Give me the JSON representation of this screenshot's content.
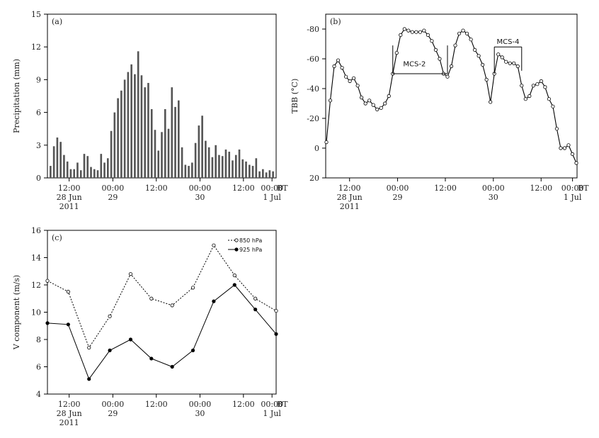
{
  "chart_data": [
    {
      "panel": "(a)",
      "type": "bar",
      "ylabel": "Precipitation (mm)",
      "ylim": [
        0,
        15
      ],
      "yticks": [
        "0",
        "3",
        "6",
        "9",
        "12",
        "15"
      ],
      "xticks": [
        {
          "lines": [
            "12:00",
            "28 Jun",
            "2011"
          ]
        },
        {
          "lines": [
            "00:00",
            "29"
          ]
        },
        {
          "lines": [
            "12:00"
          ]
        },
        {
          "lines": [
            "00:00",
            "30"
          ]
        },
        {
          "lines": [
            "12:00"
          ]
        },
        {
          "lines": [
            "00:00",
            "1 Jul"
          ]
        }
      ],
      "x_unit": "BT",
      "values": [
        1.1,
        2.9,
        3.7,
        3.3,
        2.1,
        1.5,
        0.8,
        0.8,
        1.4,
        0.7,
        2.2,
        2.0,
        1.0,
        0.8,
        0.7,
        2.2,
        1.4,
        1.8,
        4.3,
        6.0,
        7.3,
        8.0,
        9.0,
        9.7,
        10.4,
        9.5,
        11.6,
        9.4,
        8.3,
        8.7,
        6.3,
        4.4,
        2.5,
        4.2,
        6.3,
        4.5,
        8.3,
        6.5,
        7.1,
        2.8,
        1.2,
        1.1,
        1.4,
        3.2,
        4.8,
        5.7,
        3.4,
        2.8,
        1.9,
        3.0,
        2.1,
        2.0,
        2.6,
        2.4,
        1.6,
        2.1,
        2.6,
        1.7,
        1.5,
        1.2,
        1.1,
        1.8,
        0.6,
        0.8,
        0.5,
        0.7,
        0.6
      ]
    },
    {
      "panel": "(b)",
      "type": "line",
      "ylabel": "TBB (°C)",
      "ylim": [
        20,
        -90
      ],
      "yticks": [
        "20",
        "0",
        "-20",
        "-40",
        "-60",
        "-80"
      ],
      "xticks": [
        {
          "lines": [
            "12:00",
            "28 Jun",
            "2011"
          ]
        },
        {
          "lines": [
            "00:00",
            "29"
          ]
        },
        {
          "lines": [
            "12:00"
          ]
        },
        {
          "lines": [
            "00:00",
            "30"
          ]
        },
        {
          "lines": [
            "12:00"
          ]
        },
        {
          "lines": [
            "00:00",
            "1 Jul"
          ]
        }
      ],
      "x_unit": "BT",
      "annotations": [
        "MCS-2",
        "MCS-4"
      ],
      "values": [
        -4,
        -32,
        -55,
        -59,
        -54,
        -48,
        -45,
        -47,
        -42,
        -34,
        -30,
        -32,
        -29,
        -26,
        -27,
        -30,
        -35,
        -50,
        -64,
        -76,
        -80,
        -79,
        -78,
        -78,
        -78,
        -79,
        -76,
        -72,
        -66,
        -60,
        -50,
        -48,
        -55,
        -69,
        -77,
        -79,
        -77,
        -73,
        -66,
        -62,
        -56,
        -46,
        -31,
        -50,
        -63,
        -61,
        -58,
        -57,
        -57,
        -55,
        -42,
        -33,
        -35,
        -42,
        -43,
        -45,
        -41,
        -33,
        -28,
        -13,
        0,
        0,
        -2,
        4,
        10
      ]
    },
    {
      "panel": "(c)",
      "type": "line",
      "ylabel": "V component (m/s)",
      "ylim": [
        4,
        16
      ],
      "yticks": [
        "4",
        "6",
        "8",
        "10",
        "12",
        "14",
        "16"
      ],
      "xticks": [
        {
          "lines": [
            "12:00",
            "28 Jun",
            "2011"
          ]
        },
        {
          "lines": [
            "00:00",
            "29"
          ]
        },
        {
          "lines": [
            "12:00"
          ]
        },
        {
          "lines": [
            "00:00",
            "30"
          ]
        },
        {
          "lines": [
            "12:00"
          ]
        },
        {
          "lines": [
            "00:00",
            "1 Jul"
          ]
        }
      ],
      "x_unit": "BT",
      "legend_position": "top-right",
      "series": [
        {
          "name": "850 hPa",
          "style": "dashed-open",
          "values": [
            12.3,
            11.5,
            7.4,
            9.7,
            12.8,
            11.0,
            10.5,
            11.8,
            14.9,
            12.7,
            11.0,
            10.1
          ]
        },
        {
          "name": "925 hPa",
          "style": "solid-filled",
          "values": [
            9.2,
            9.1,
            5.1,
            7.2,
            8.0,
            6.6,
            6.0,
            7.2,
            10.8,
            12.0,
            10.2,
            8.4
          ]
        }
      ]
    }
  ]
}
